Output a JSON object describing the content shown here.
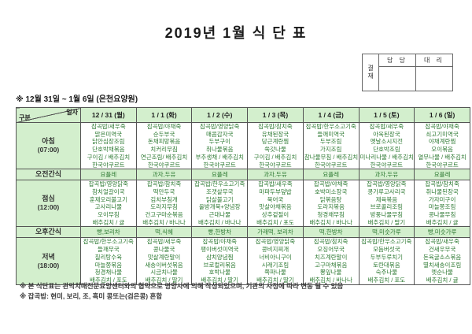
{
  "title": "2019년 1월 식 단 표",
  "subtitle": "※ 12월 31일 ~ 1월 6일 (은천요양원)",
  "approval": {
    "stamp_label": "결재",
    "cols": [
      "담 당",
      "대 리"
    ]
  },
  "colors": {
    "header_green": "#d3efcd",
    "menu_text_green": "#2e7a33",
    "border_gray": "#555555"
  },
  "table": {
    "corner": {
      "top": "일자",
      "bottom": "구분"
    },
    "columns": [
      "12 / 31 (월)",
      "1 / 1 (화)",
      "1 / 2 (수)",
      "1 / 3 (목)",
      "1 / 4 (금)",
      "1 / 5 (토)",
      "1 / 6 (일)"
    ],
    "rows": [
      {
        "id": "breakfast",
        "kind": "meal",
        "label": "아침",
        "time": "(07:00)",
        "cells": [
          [
            "잡곡밥/새우죽",
            "맑은미역국",
            "닭안심장조림",
            "단호박채볶음",
            "구이김 / 배추김치",
            "한국야쿠르트"
          ],
          [
            "잡곡밥/야채죽",
            "순두부국",
            "돈채피망볶음",
            "치커리무침",
            "연근조림/ 배추김치",
            "한국야쿠르트"
          ],
          [
            "잡곡밥/영양닭죽",
            "매콤감자국",
            "두부구이",
            "취나물볶음",
            "부추생채 / 배추김치",
            "한국야쿠르트"
          ],
          [
            "잡곡밥/참치죽",
            "유채된장국",
            "당근계란찜",
            "쑥갓나물",
            "구이김 / 배추김치",
            "한국야쿠르트"
          ],
          [
            "잡곡밥/한우소고기죽",
            "들깨미역국",
            "두부조림",
            "가지조림",
            "참나물무침 / 배추김치",
            "한국야쿠르트"
          ],
          [
            "잡곡밥/새우죽",
            "아욱된장국",
            "옛날소시지전",
            "단호박조림",
            "미나리나물 / 배추김치",
            "한국야쿠르트"
          ],
          [
            "잡곡밥/야채죽",
            "쇠고기미역국",
            "야채계란찜",
            "오이볶음",
            "열무나물 / 배추김치",
            "한국야쿠르트"
          ]
        ]
      },
      {
        "id": "am-snack",
        "kind": "snack",
        "label": "오전간식",
        "cells": [
          "요플레",
          "과자,두유",
          "요플레",
          "과자,두유",
          "요플레",
          "과자,두유",
          "요플레"
        ]
      },
      {
        "id": "lunch",
        "kind": "meal",
        "label": "점심",
        "time": "(12:00)",
        "cells": [
          [
            "잡곡밥/영양닭죽",
            "참치얼갈이국",
            "훈제오리불고기",
            "고사리나물",
            "오이무침",
            "배추김치 / 귤"
          ],
          [
            "잡곡밥/참치죽",
            "떡만두국",
            "김치부침개",
            "도라지무침",
            "건고구마순볶음",
            "배추김치 / 바나나"
          ],
          [
            "잡곡밥/한우소고기죽",
            "조갯살무국",
            "닭살불고기",
            "올방개묵+양념장",
            "근대나물",
            "배추김치 / 바나나"
          ],
          [
            "잡곡밥/새우죽",
            "마파두부덮밥",
            "북어국",
            "맛살야채볶음",
            "상추겉절이",
            "배추김치 / 포도"
          ],
          [
            "잡곡밥/야채죽",
            "호박미소장국",
            "닭볶음탕",
            "도라지볶음",
            "청경채무침",
            "배추김치 / 바나나"
          ],
          [
            "잡곡밥/영양닭죽",
            "콩가루고사리국",
            "제육볶음",
            "브로콜리조림",
            "방풍나물무침",
            "배추김치 / 딸기"
          ],
          [
            "잡곡밥/참치죽",
            "취나물된장국",
            "가자미구이",
            "마늘쫑조림",
            "콩나물무침",
            "배추김치 / 귤"
          ]
        ]
      },
      {
        "id": "pm-snack",
        "kind": "snack",
        "label": "오후간식",
        "cells": [
          "빵,보리차",
          "떡,식혜",
          "빵,한방차",
          "가래떡, 보리차",
          "떡,한방차",
          "떡,미숫가루",
          "빵,미숫가루"
        ]
      },
      {
        "id": "dinner",
        "kind": "meal",
        "label": "저녁",
        "time": "(18:00)",
        "cells": [
          [
            "잡곡밥/한우소고기죽",
            "들깨무국",
            "칠리탕수육",
            "마늘쫑볶음",
            "청경채나물",
            "배추김치 / 포도"
          ],
          [
            "잡곡밥/새우죽",
            "콩나물국",
            "맛살계란말이",
            "새송이버섯볶음",
            "시금치나물",
            "배추김치 / 딸기"
          ],
          [
            "잡곡밥/야채죽",
            "팽이버섯미역국",
            "삼치양념찜",
            "브로컬리볶음",
            "호박나물",
            "배추김치 / 딸기"
          ],
          [
            "잡곡밥/영양닭죽",
            "콩비지찌개",
            "너비아니구이",
            "시래기조림",
            "쪽파나물",
            "배추김치 / 딸기"
          ],
          [
            "잡곡밥/참치죽",
            "오징어무국",
            "치즈계란말이",
            "고구마채볶음",
            "뽕잎나물",
            "배추김치 / 바나나"
          ],
          [
            "잡곡밥/한우소고기죽",
            "모듬버섯국",
            "두부두루치기",
            "토란대볶음",
            "숙주나물",
            "배추김치 / 포도"
          ],
          [
            "잡곡밥/새우죽",
            "건새우무국",
            "돈육굴소스볶음",
            "멸치새송이조림",
            "멧순나물",
            "배추김치 / 귤"
          ]
        ]
      }
    ]
  },
  "notes": [
    "※ 본 식단표는 관악치매전문요양센터와의 협약으로 영양사에 의해 작성되었으며, 기관의 사정에 따라 변동 될 수 있음",
    "※ 잡곡밥: 현미, 보리, 조, 흑미 콩또는(검은콩) 혼합"
  ]
}
